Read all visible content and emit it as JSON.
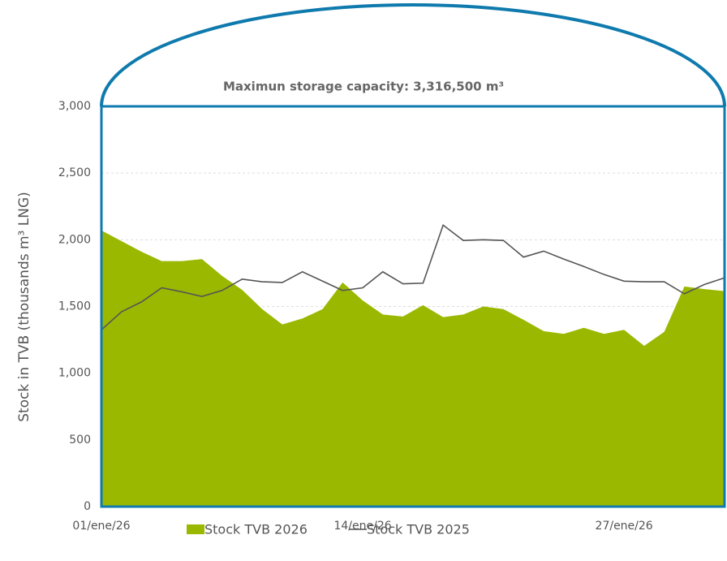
{
  "chart_data": {
    "type": "area_line",
    "y_label": "Stock in TVB (thousands m³ LNG)",
    "annotation": "Maximun storage capacity: 3,316,500 m³",
    "categories": [
      "01/ene/26",
      null,
      null,
      null,
      null,
      null,
      null,
      null,
      null,
      null,
      null,
      null,
      null,
      "14/ene/26",
      null,
      null,
      null,
      null,
      null,
      null,
      null,
      null,
      null,
      null,
      null,
      null,
      "27/ene/26",
      null,
      null,
      null,
      null,
      null
    ],
    "series": [
      {
        "name": "Stock TVB 2026",
        "color": "#9bb800",
        "kind": "area",
        "values": [
          2070,
          1990,
          1910,
          1840,
          1840,
          1855,
          1730,
          1625,
          1480,
          1365,
          1410,
          1480,
          1680,
          1545,
          1440,
          1425,
          1510,
          1420,
          1440,
          1500,
          1480,
          1400,
          1315,
          1295,
          1340,
          1295,
          1325,
          1205,
          1310,
          1650,
          1630,
          1615
        ]
      },
      {
        "name": "Stock TVB 2025",
        "color": "#555555",
        "kind": "line",
        "values": [
          1325,
          1460,
          1535,
          1640,
          1610,
          1575,
          1620,
          1705,
          1685,
          1680,
          1760,
          1690,
          1620,
          1640,
          1760,
          1670,
          1675,
          2110,
          1995,
          2000,
          1995,
          1870,
          1915,
          1855,
          1800,
          1740,
          1690,
          1685,
          1685,
          1595,
          1665,
          1715
        ]
      }
    ],
    "ylim": [
      0,
      3000
    ],
    "yticks": [
      0,
      500,
      {
        "value": 1000,
        "label": "1,000"
      },
      {
        "value": 1500,
        "label": "1,500"
      },
      {
        "value": 2000,
        "label": "2,000"
      },
      {
        "value": 2500,
        "label": "2,500"
      },
      {
        "value": 3000,
        "label": "3,000"
      }
    ],
    "grid": true,
    "legend": "bottom"
  }
}
